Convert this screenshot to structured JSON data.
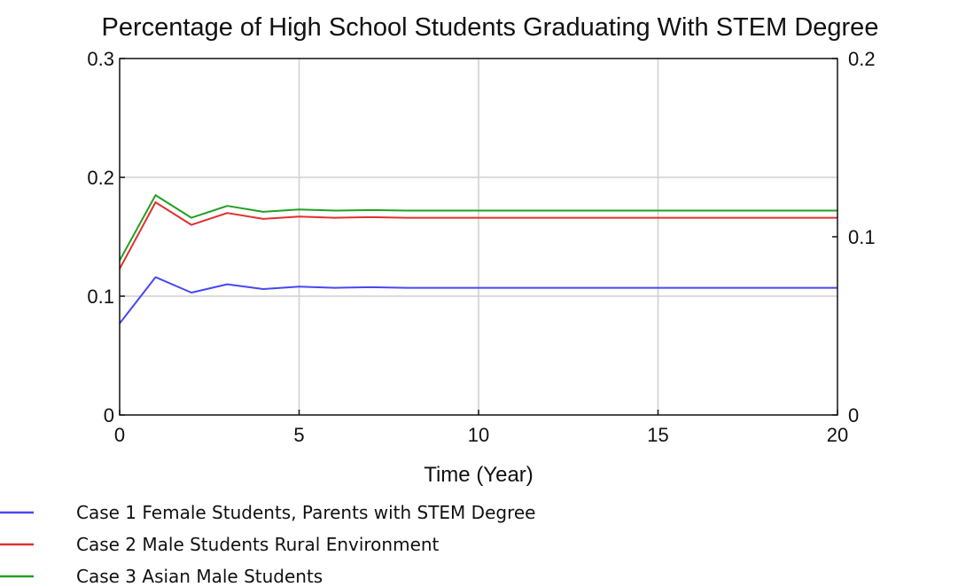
{
  "chart_data": {
    "type": "line",
    "title": "Percentage of High School Students Graduating With STEM Degree",
    "xlabel": "Time (Year)",
    "xlim": [
      0,
      20
    ],
    "ylim_left": [
      0,
      0.3
    ],
    "ylim_right": [
      0,
      0.2
    ],
    "x_ticks": [
      "0",
      "5",
      "10",
      "15",
      "20"
    ],
    "y_ticks_left": [
      "0",
      "0.1",
      "0.2",
      "0.3"
    ],
    "y_ticks_right": [
      "0",
      "0.1",
      "0.2"
    ],
    "grid": true,
    "legend_position": "bottom-left",
    "x": [
      0,
      1,
      2,
      3,
      4,
      5,
      6,
      7,
      8,
      9,
      10,
      11,
      12,
      13,
      14,
      15,
      16,
      17,
      18,
      19,
      20
    ],
    "series": [
      {
        "name": "Case 1 Female Students, Parents with STEM Degree",
        "color": "#4848f0",
        "values": [
          0.077,
          0.116,
          0.103,
          0.11,
          0.106,
          0.108,
          0.107,
          0.1075,
          0.107,
          0.107,
          0.107,
          0.107,
          0.107,
          0.107,
          0.107,
          0.107,
          0.107,
          0.107,
          0.107,
          0.107,
          0.107
        ]
      },
      {
        "name": "Case 2 Male Students Rural Environment",
        "color": "#e03030",
        "values": [
          0.123,
          0.179,
          0.16,
          0.17,
          0.165,
          0.167,
          0.166,
          0.1665,
          0.166,
          0.166,
          0.166,
          0.166,
          0.166,
          0.166,
          0.166,
          0.166,
          0.166,
          0.166,
          0.166,
          0.166,
          0.166
        ]
      },
      {
        "name": "Case 3 Asian Male Students",
        "color": "#22a022",
        "values": [
          0.13,
          0.185,
          0.166,
          0.176,
          0.171,
          0.173,
          0.172,
          0.1725,
          0.172,
          0.172,
          0.172,
          0.172,
          0.172,
          0.172,
          0.172,
          0.172,
          0.172,
          0.172,
          0.172,
          0.172,
          0.172
        ]
      }
    ]
  }
}
